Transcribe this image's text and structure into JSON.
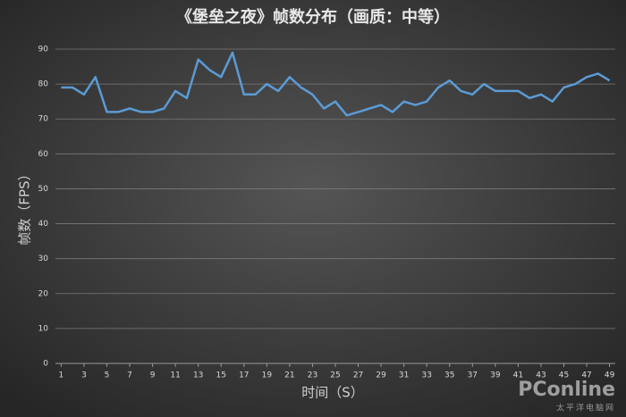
{
  "chart_data": {
    "type": "line",
    "title": "《堡垒之夜》帧数分布（画质：中等）",
    "ylabel": "帧数（FPS）",
    "xlabel": "时间（S）",
    "x": [
      1,
      2,
      3,
      4,
      5,
      6,
      7,
      8,
      9,
      10,
      11,
      12,
      13,
      14,
      15,
      16,
      17,
      18,
      19,
      20,
      21,
      22,
      23,
      24,
      25,
      26,
      27,
      28,
      29,
      30,
      31,
      32,
      33,
      34,
      35,
      36,
      37,
      38,
      39,
      40,
      41,
      42,
      43,
      44,
      45,
      46,
      47,
      48,
      49
    ],
    "values": [
      79,
      79,
      77,
      82,
      72,
      72,
      73,
      72,
      72,
      73,
      78,
      76,
      87,
      84,
      82,
      89,
      77,
      77,
      80,
      78,
      82,
      79,
      77,
      73,
      75,
      71,
      72,
      73,
      74,
      72,
      75,
      74,
      75,
      79,
      81,
      78,
      77,
      80,
      78,
      78,
      78,
      76,
      77,
      75,
      79,
      80,
      82,
      83,
      81
    ],
    "color": "#5b9bd5",
    "xlim": [
      0.5,
      49.5
    ],
    "xticks": [
      1,
      3,
      5,
      7,
      9,
      11,
      13,
      15,
      17,
      19,
      21,
      23,
      25,
      27,
      29,
      31,
      33,
      35,
      37,
      39,
      41,
      43,
      45,
      47,
      49
    ],
    "ylim": [
      0,
      90
    ],
    "yticks": [
      0,
      10,
      20,
      30,
      40,
      50,
      60,
      70,
      80,
      90
    ],
    "grid": true
  },
  "watermark": {
    "brand": "PConline",
    "subtitle": "太平洋电脑网"
  }
}
